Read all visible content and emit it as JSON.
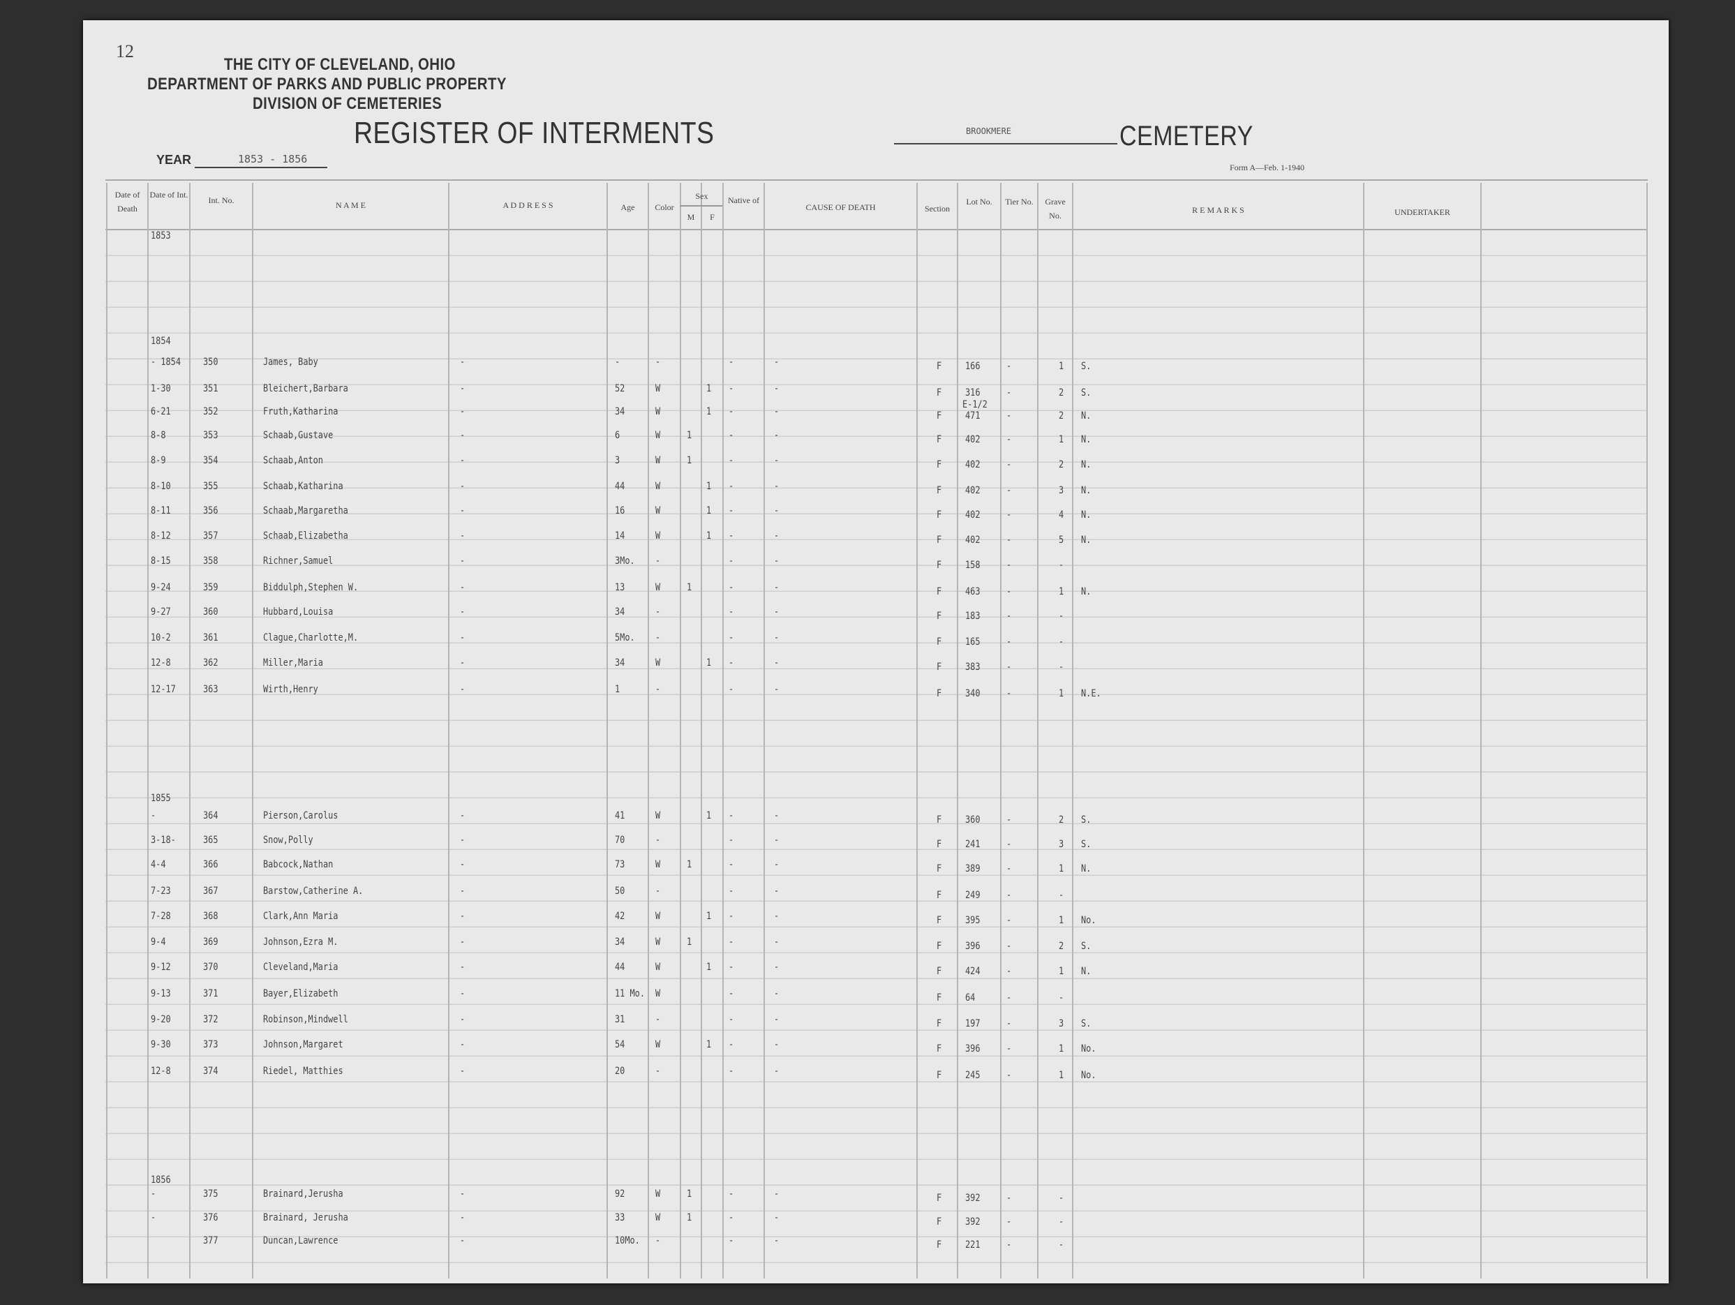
{
  "header": {
    "page_number": "12",
    "city": "THE CITY OF CLEVELAND, OHIO",
    "department": "DEPARTMENT OF PARKS AND PUBLIC PROPERTY",
    "division": "DIVISION OF CEMETERIES",
    "title": "REGISTER OF INTERMENTS",
    "cemetery_name": "BROOKMERE",
    "cemetery_label": "CEMETERY",
    "year_label": "YEAR",
    "year_value": "1853 - 1856",
    "form_id": "Form A—Feb. 1-1940"
  },
  "columns": {
    "date_of_death": "Date of Death",
    "date_of_int": "Date of Int.",
    "int_no": "Int. No.",
    "name": "N A M E",
    "address": "A D D R E S S",
    "age": "Age",
    "color": "Color",
    "sex": "Sex",
    "sex_m": "M",
    "sex_f": "F",
    "native_of": "Native of",
    "cause_of_death": "CAUSE OF DEATH",
    "section": "Section",
    "lot_no": "Lot No.",
    "tier_no": "Tier No.",
    "grave_no": "Grave No.",
    "remarks": "R E M A R K S",
    "undertaker": "UNDERTAKER"
  },
  "year_markers": [
    "1853",
    "1854",
    "1855",
    "1856"
  ],
  "rows": [
    {
      "date": "- 1854",
      "int_no": "350",
      "name": "James, Baby",
      "address": "-",
      "age": "-",
      "color": "-",
      "m": "",
      "f": "",
      "native": "-",
      "cause": "-",
      "section": "F",
      "lot": "166",
      "lot_note": "",
      "tier": "-",
      "grave": "1",
      "remarks": "S."
    },
    {
      "date": "1-30",
      "int_no": "351",
      "name": "Bleichert,Barbara",
      "address": "-",
      "age": "52",
      "color": "W",
      "m": "",
      "f": "1",
      "native": "-",
      "cause": "-",
      "section": "F",
      "lot": "316",
      "lot_note": "",
      "tier": "-",
      "grave": "2",
      "remarks": "S."
    },
    {
      "date": "6-21",
      "int_no": "352",
      "name": "Fruth,Katharina",
      "address": "-",
      "age": "34",
      "color": "W",
      "m": "",
      "f": "1",
      "native": "-",
      "cause": "-",
      "section": "F",
      "lot": "471",
      "lot_note": "E-1/2",
      "tier": "-",
      "grave": "2",
      "remarks": "N."
    },
    {
      "date": "8-8",
      "int_no": "353",
      "name": "Schaab,Gustave",
      "address": "-",
      "age": "6",
      "color": "W",
      "m": "1",
      "f": "",
      "native": "-",
      "cause": "-",
      "section": "F",
      "lot": "402",
      "lot_note": "",
      "tier": "-",
      "grave": "1",
      "remarks": "N."
    },
    {
      "date": "8-9",
      "int_no": "354",
      "name": "Schaab,Anton",
      "address": "-",
      "age": "3",
      "color": "W",
      "m": "1",
      "f": "",
      "native": "-",
      "cause": "-",
      "section": "F",
      "lot": "402",
      "lot_note": "",
      "tier": "-",
      "grave": "2",
      "remarks": "N."
    },
    {
      "date": "8-10",
      "int_no": "355",
      "name": "Schaab,Katharina",
      "address": "-",
      "age": "44",
      "color": "W",
      "m": "",
      "f": "1",
      "native": "-",
      "cause": "-",
      "section": "F",
      "lot": "402",
      "lot_note": "",
      "tier": "-",
      "grave": "3",
      "remarks": "N."
    },
    {
      "date": "8-11",
      "int_no": "356",
      "name": "Schaab,Margaretha",
      "address": "-",
      "age": "16",
      "color": "W",
      "m": "",
      "f": "1",
      "native": "-",
      "cause": "-",
      "section": "F",
      "lot": "402",
      "lot_note": "",
      "tier": "-",
      "grave": "4",
      "remarks": "N."
    },
    {
      "date": "8-12",
      "int_no": "357",
      "name": "Schaab,Elizabetha",
      "address": "-",
      "age": "14",
      "color": "W",
      "m": "",
      "f": "1",
      "native": "-",
      "cause": "-",
      "section": "F",
      "lot": "402",
      "lot_note": "",
      "tier": "-",
      "grave": "5",
      "remarks": "N."
    },
    {
      "date": "8-15",
      "int_no": "358",
      "name": "Richner,Samuel",
      "address": "-",
      "age": "3Mo.",
      "color": "-",
      "m": "",
      "f": "",
      "native": "-",
      "cause": "-",
      "section": "F",
      "lot": "158",
      "lot_note": "",
      "tier": "-",
      "grave": "-",
      "remarks": ""
    },
    {
      "date": "9-24",
      "int_no": "359",
      "name": "Biddulph,Stephen W.",
      "address": "-",
      "age": "13",
      "color": "W",
      "m": "1",
      "f": "",
      "native": "-",
      "cause": "-",
      "section": "F",
      "lot": "463",
      "lot_note": "",
      "tier": "-",
      "grave": "1",
      "remarks": "N."
    },
    {
      "date": "9-27",
      "int_no": "360",
      "name": "Hubbard,Louisa",
      "address": "-",
      "age": "34",
      "color": "-",
      "m": "",
      "f": "",
      "native": "-",
      "cause": "-",
      "section": "F",
      "lot": "183",
      "lot_note": "",
      "tier": "-",
      "grave": "-",
      "remarks": ""
    },
    {
      "date": "10-2",
      "int_no": "361",
      "name": "Clague,Charlotte,M.",
      "address": "-",
      "age": "5Mo.",
      "color": "-",
      "m": "",
      "f": "",
      "native": "-",
      "cause": "-",
      "section": "F",
      "lot": "165",
      "lot_note": "",
      "tier": "-",
      "grave": "-",
      "remarks": ""
    },
    {
      "date": "12-8",
      "int_no": "362",
      "name": "Miller,Maria",
      "address": "-",
      "age": "34",
      "color": "W",
      "m": "",
      "f": "1",
      "native": "-",
      "cause": "-",
      "section": "F",
      "lot": "383",
      "lot_note": "",
      "tier": "-",
      "grave": "-",
      "remarks": ""
    },
    {
      "date": "12-17",
      "int_no": "363",
      "name": "Wirth,Henry",
      "address": "-",
      "age": "1",
      "color": "-",
      "m": "",
      "f": "",
      "native": "-",
      "cause": "-",
      "section": "F",
      "lot": "340",
      "lot_note": "",
      "tier": "-",
      "grave": "1",
      "remarks": "N.E."
    },
    {
      "date": "-",
      "int_no": "364",
      "name": "Pierson,Carolus",
      "address": "-",
      "age": "41",
      "color": "W",
      "m": "",
      "f": "1",
      "native": "-",
      "cause": "-",
      "section": "F",
      "lot": "360",
      "lot_note": "",
      "tier": "-",
      "grave": "2",
      "remarks": "S."
    },
    {
      "date": "3-18-",
      "int_no": "365",
      "name": "Snow,Polly",
      "address": "-",
      "age": "70",
      "color": "-",
      "m": "",
      "f": "",
      "native": "-",
      "cause": "-",
      "section": "F",
      "lot": "241",
      "lot_note": "",
      "tier": "-",
      "grave": "3",
      "remarks": "S."
    },
    {
      "date": "4-4",
      "int_no": "366",
      "name": "Babcock,Nathan",
      "address": "-",
      "age": "73",
      "color": "W",
      "m": "1",
      "f": "",
      "native": "-",
      "cause": "-",
      "section": "F",
      "lot": "389",
      "lot_note": "",
      "tier": "-",
      "grave": "1",
      "remarks": "N."
    },
    {
      "date": "7-23",
      "int_no": "367",
      "name": "Barstow,Catherine A.",
      "address": "-",
      "age": "50",
      "color": "-",
      "m": "",
      "f": "",
      "native": "-",
      "cause": "-",
      "section": "F",
      "lot": "249",
      "lot_note": "",
      "tier": "-",
      "grave": "-",
      "remarks": ""
    },
    {
      "date": "7-28",
      "int_no": "368",
      "name": "Clark,Ann Maria",
      "address": "-",
      "age": "42",
      "color": "W",
      "m": "",
      "f": "1",
      "native": "-",
      "cause": "-",
      "section": "F",
      "lot": "395",
      "lot_note": "",
      "tier": "-",
      "grave": "1",
      "remarks": "No."
    },
    {
      "date": "9-4",
      "int_no": "369",
      "name": "Johnson,Ezra M.",
      "address": "-",
      "age": "34",
      "color": "W",
      "m": "1",
      "f": "",
      "native": "-",
      "cause": "-",
      "section": "F",
      "lot": "396",
      "lot_note": "",
      "tier": "-",
      "grave": "2",
      "remarks": "S."
    },
    {
      "date": "9-12",
      "int_no": "370",
      "name": "Cleveland,Maria",
      "address": "-",
      "age": "44",
      "color": "W",
      "m": "",
      "f": "1",
      "native": "-",
      "cause": "-",
      "section": "F",
      "lot": "424",
      "lot_note": "",
      "tier": "-",
      "grave": "1",
      "remarks": "N."
    },
    {
      "date": "9-13",
      "int_no": "371",
      "name": "Bayer,Elizabeth",
      "address": "-",
      "age": "11 Mo.",
      "color": "W",
      "m": "",
      "f": "",
      "native": "-",
      "cause": "-",
      "section": "F",
      "lot": "64",
      "lot_note": "",
      "tier": "-",
      "grave": "-",
      "remarks": ""
    },
    {
      "date": "9-20",
      "int_no": "372",
      "name": "Robinson,Mindwell",
      "address": "-",
      "age": "31",
      "color": "-",
      "m": "",
      "f": "",
      "native": "-",
      "cause": "-",
      "section": "F",
      "lot": "197",
      "lot_note": "",
      "tier": "-",
      "grave": "3",
      "remarks": "S."
    },
    {
      "date": "9-30",
      "int_no": "373",
      "name": "Johnson,Margaret",
      "address": "-",
      "age": "54",
      "color": "W",
      "m": "",
      "f": "1",
      "native": "-",
      "cause": "-",
      "section": "F",
      "lot": "396",
      "lot_note": "",
      "tier": "-",
      "grave": "1",
      "remarks": "No."
    },
    {
      "date": "12-8",
      "int_no": "374",
      "name": "Riedel, Matthies",
      "address": "-",
      "age": "20",
      "color": "-",
      "m": "",
      "f": "",
      "native": "-",
      "cause": "-",
      "section": "F",
      "lot": "245",
      "lot_note": "",
      "tier": "-",
      "grave": "1",
      "remarks": "No."
    },
    {
      "date": "-",
      "int_no": "375",
      "name": "Brainard,Jerusha",
      "address": "-",
      "age": "92",
      "color": "W",
      "m": "1",
      "f": "",
      "native": "-",
      "cause": "-",
      "section": "F",
      "lot": "392",
      "lot_note": "",
      "tier": "-",
      "grave": "-",
      "remarks": ""
    },
    {
      "date": "-",
      "int_no": "376",
      "name": "Brainard, Jerusha",
      "address": "-",
      "age": "33",
      "color": "W",
      "m": "1",
      "f": "",
      "native": "-",
      "cause": "-",
      "section": "F",
      "lot": "392",
      "lot_note": "",
      "tier": "-",
      "grave": "-",
      "remarks": ""
    },
    {
      "date": "",
      "int_no": "377",
      "name": "Duncan,Lawrence",
      "address": "-",
      "age": "10Mo.",
      "color": "-",
      "m": "",
      "f": "",
      "native": "-",
      "cause": "-",
      "section": "F",
      "lot": "221",
      "lot_note": "",
      "tier": "-",
      "grave": "-",
      "remarks": ""
    }
  ]
}
